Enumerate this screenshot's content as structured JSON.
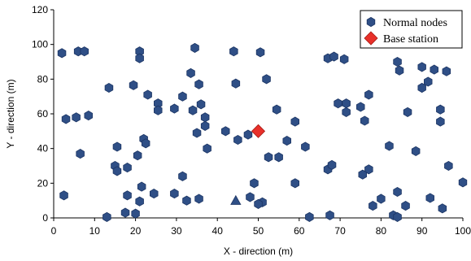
{
  "chart_data": {
    "type": "scatter",
    "xlabel": "X - direction (m)",
    "ylabel": "Y - direction (m)",
    "xlim": [
      0,
      100
    ],
    "ylim": [
      0,
      120
    ],
    "xticks": [
      0,
      10,
      20,
      30,
      40,
      50,
      60,
      70,
      80,
      90,
      100
    ],
    "yticks": [
      0,
      20,
      40,
      60,
      80,
      100,
      120
    ],
    "grid": false,
    "legend_position": "top-right",
    "series": [
      {
        "name": "Normal nodes",
        "marker": "hexagon",
        "color": "#2f4f86",
        "points": [
          [
            2,
            95
          ],
          [
            6,
            96
          ],
          [
            7.5,
            96
          ],
          [
            13.5,
            75
          ],
          [
            19.5,
            76.5
          ],
          [
            21,
            96
          ],
          [
            21,
            92
          ],
          [
            3,
            57
          ],
          [
            5.5,
            58
          ],
          [
            8.5,
            59
          ],
          [
            6.5,
            37
          ],
          [
            2.5,
            13
          ],
          [
            15.5,
            41
          ],
          [
            15,
            30
          ],
          [
            15.5,
            27
          ],
          [
            18,
            29
          ],
          [
            20.5,
            36
          ],
          [
            22,
            45.5
          ],
          [
            22.5,
            43
          ],
          [
            23,
            71
          ],
          [
            25.5,
            66
          ],
          [
            25.5,
            62
          ],
          [
            29.5,
            63
          ],
          [
            31.5,
            70
          ],
          [
            33.5,
            83.5
          ],
          [
            34.5,
            98
          ],
          [
            34,
            62
          ],
          [
            35.5,
            77
          ],
          [
            36,
            65.5
          ],
          [
            37,
            58
          ],
          [
            37,
            53
          ],
          [
            35,
            49
          ],
          [
            37.5,
            40
          ],
          [
            18,
            13
          ],
          [
            21,
            9.5
          ],
          [
            21.5,
            18
          ],
          [
            24.5,
            14
          ],
          [
            17.5,
            3
          ],
          [
            20,
            2.5
          ],
          [
            13,
            0.5
          ],
          [
            29.5,
            14
          ],
          [
            31.5,
            24
          ],
          [
            32.5,
            10
          ],
          [
            35.5,
            11
          ],
          [
            42,
            50
          ],
          [
            45,
            45
          ],
          [
            47.5,
            48
          ],
          [
            44,
            96
          ],
          [
            44.5,
            77.5
          ],
          [
            50.5,
            95.5
          ],
          [
            52,
            80
          ],
          [
            54.5,
            62.5
          ],
          [
            52.5,
            35
          ],
          [
            55,
            35
          ],
          [
            57,
            44.5
          ],
          [
            59,
            55.5
          ],
          [
            61.5,
            41
          ],
          [
            59,
            20
          ],
          [
            48,
            12
          ],
          [
            49,
            20
          ],
          [
            51,
            9
          ],
          [
            50,
            8
          ],
          [
            62.5,
            0.5
          ],
          [
            67.5,
            1.5
          ],
          [
            67,
            28
          ],
          [
            68,
            30.5
          ],
          [
            67,
            92
          ],
          [
            68.5,
            93
          ],
          [
            71,
            91.5
          ],
          [
            69.5,
            66
          ],
          [
            71.5,
            66
          ],
          [
            71.5,
            61
          ],
          [
            75,
            64
          ],
          [
            76,
            56
          ],
          [
            77,
            71
          ],
          [
            77,
            28
          ],
          [
            75.5,
            25
          ],
          [
            78,
            7
          ],
          [
            80,
            11
          ],
          [
            82,
            41.5
          ],
          [
            83,
            1.5
          ],
          [
            84,
            15
          ],
          [
            84,
            0.5
          ],
          [
            86,
            7
          ],
          [
            88.5,
            38.5
          ],
          [
            84,
            90
          ],
          [
            84.5,
            85
          ],
          [
            86.5,
            61
          ],
          [
            90,
            87
          ],
          [
            90,
            75
          ],
          [
            91.5,
            78.5
          ],
          [
            93,
            85.5
          ],
          [
            96,
            84.5
          ],
          [
            94.5,
            62.5
          ],
          [
            94.5,
            55.5
          ],
          [
            96.5,
            30
          ],
          [
            100,
            20.5
          ],
          [
            92,
            11.5
          ],
          [
            95,
            5.5
          ]
        ]
      },
      {
        "name": "Base station",
        "marker": "diamond",
        "color": "#e8302a",
        "points": [
          [
            50,
            50
          ]
        ]
      },
      {
        "name": "",
        "marker": "triangle",
        "color": "#2f4f86",
        "points": [
          [
            44.5,
            10
          ]
        ]
      }
    ]
  }
}
